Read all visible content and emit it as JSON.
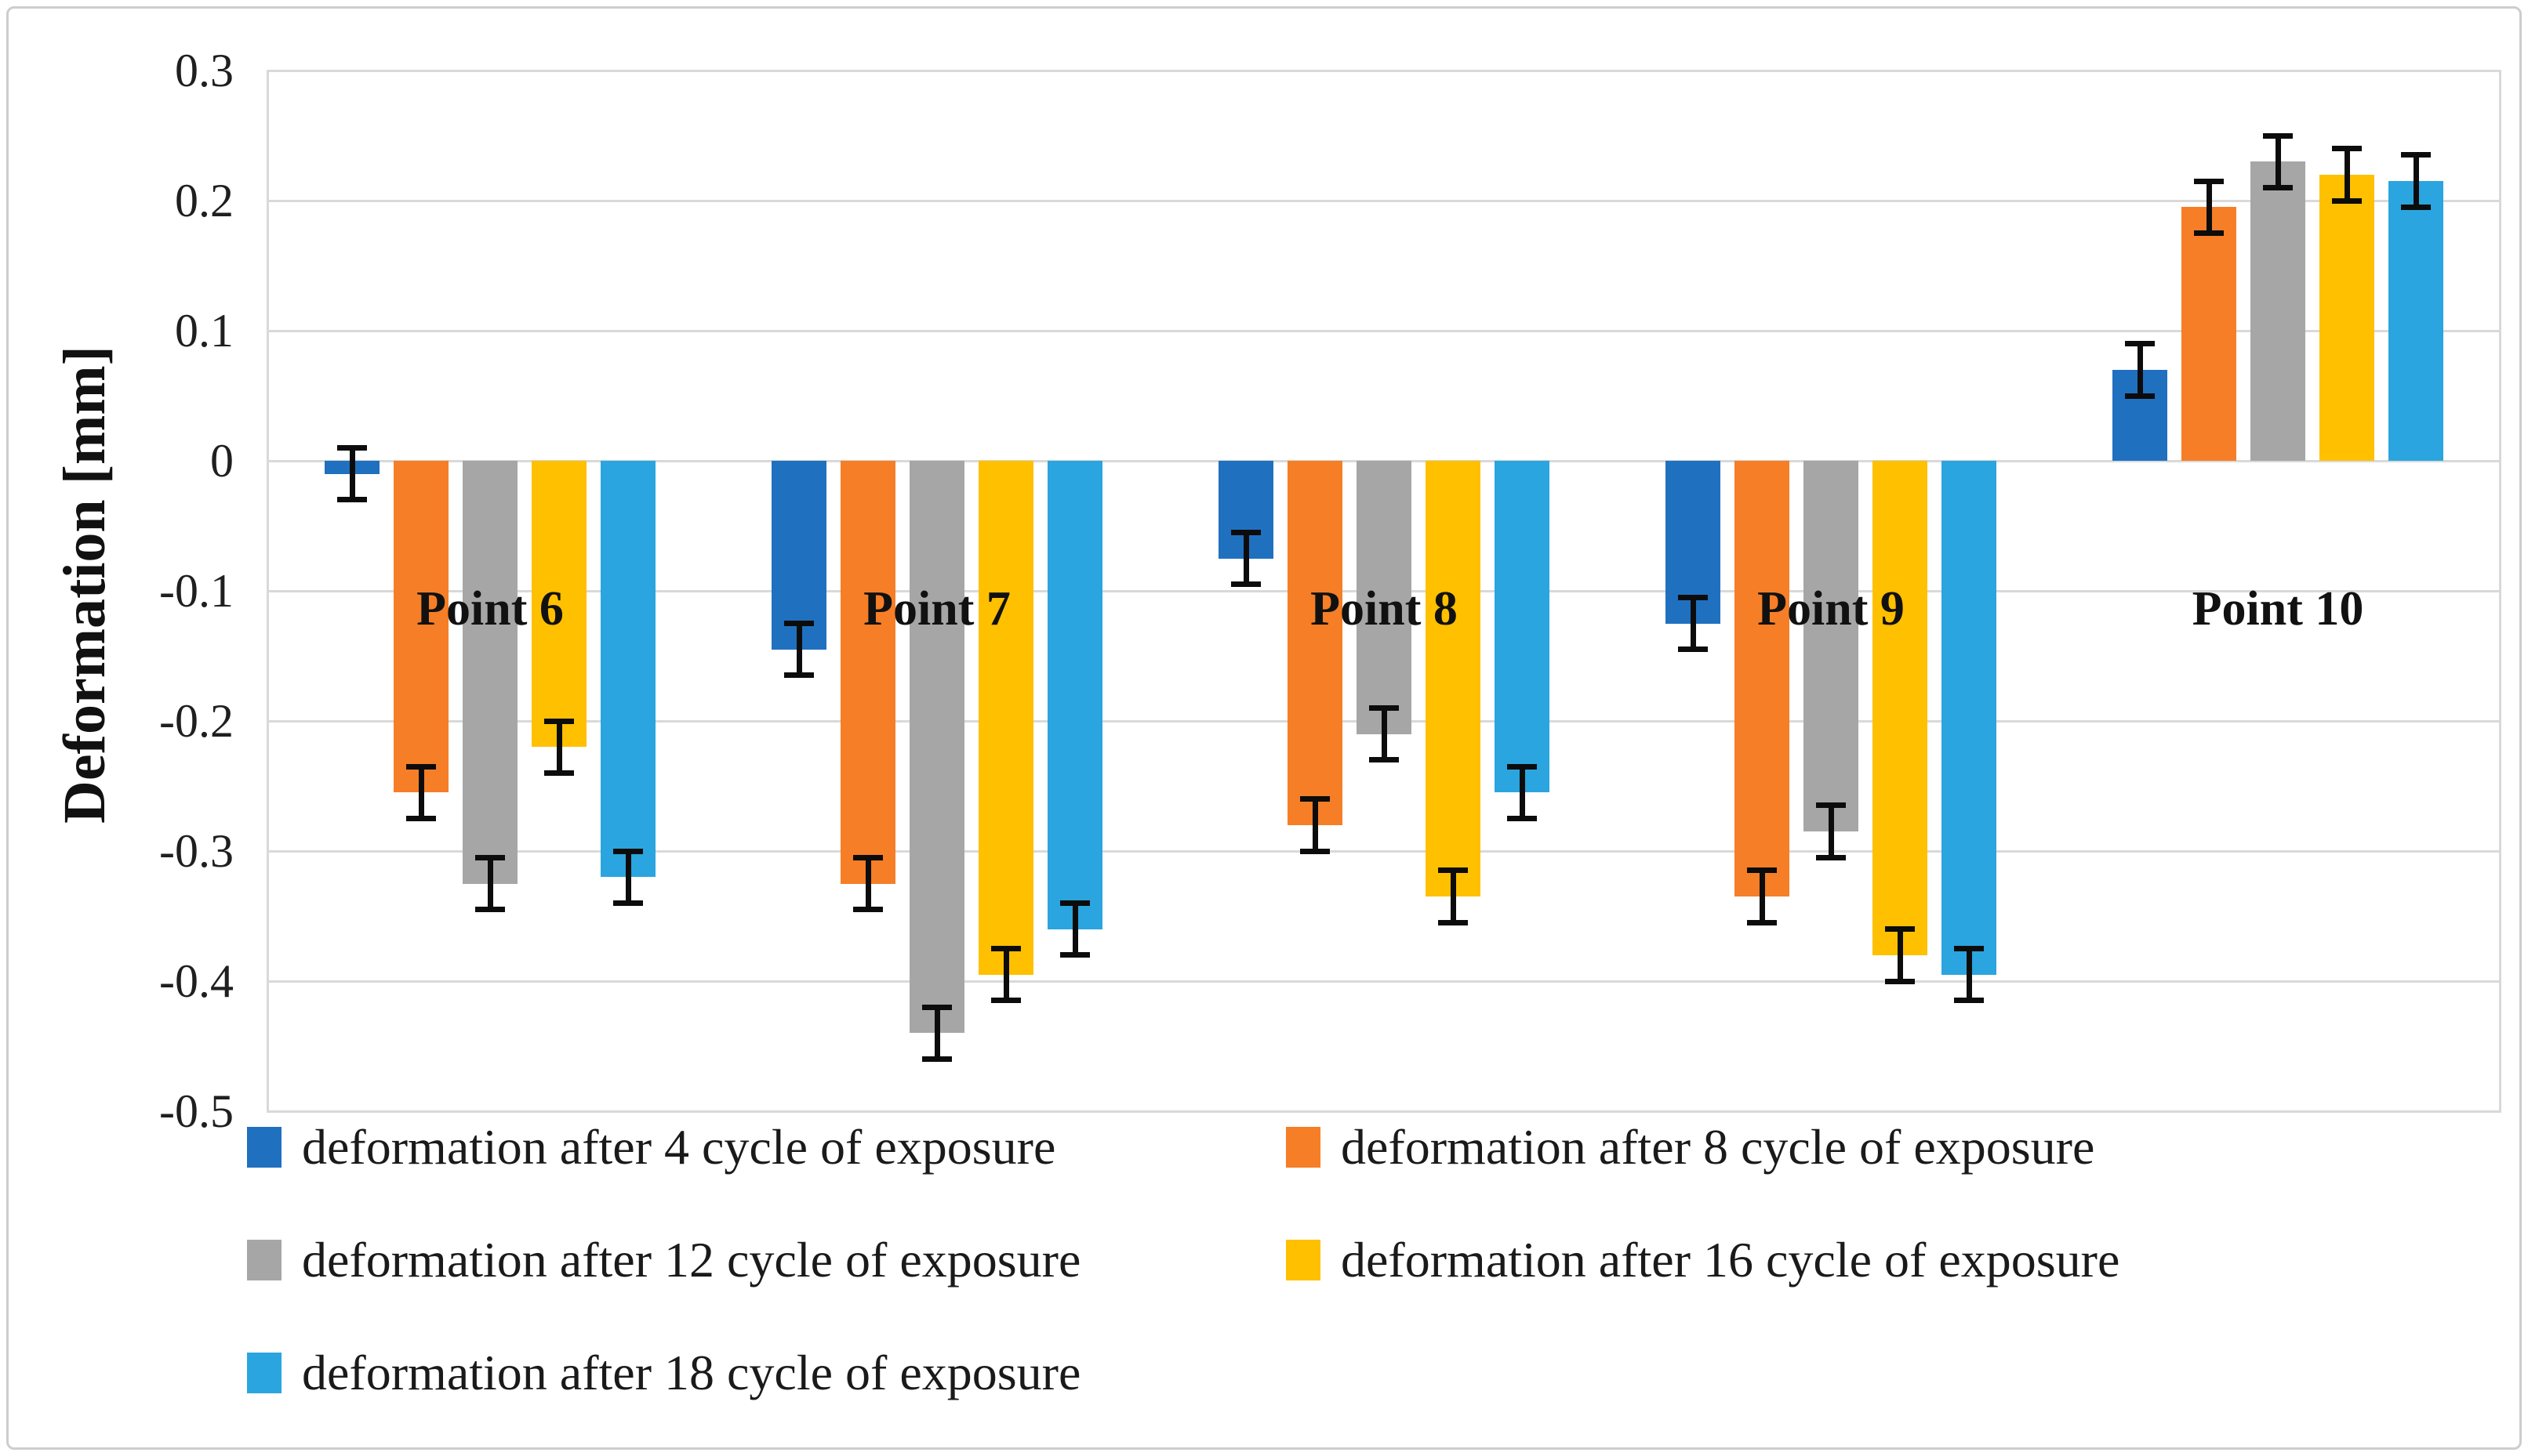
{
  "chart_data": {
    "type": "bar",
    "title": "",
    "xlabel": "",
    "ylabel": "Deformation [mm]",
    "categories": [
      "Point 6",
      "Point 7",
      "Point 8",
      "Point 9",
      "Point 10"
    ],
    "y_axis": {
      "min": -0.5,
      "max": 0.3,
      "tick_step": 0.1,
      "tick_labels": [
        "0.3",
        "0.2",
        "0.1",
        "0",
        "-0.1",
        "-0.2",
        "-0.3",
        "-0.4",
        "-0.5"
      ]
    },
    "grid": true,
    "legend_position": "bottom",
    "error_bar": 0.02,
    "series": [
      {
        "name": "deformation after 4 cycle of exposure",
        "color": "#2070C0",
        "values": [
          -0.01,
          -0.145,
          -0.075,
          -0.125,
          0.07
        ]
      },
      {
        "name": "deformation after 8 cycle of exposure",
        "color": "#F57E27",
        "values": [
          -0.255,
          -0.325,
          -0.28,
          -0.335,
          0.195
        ]
      },
      {
        "name": "deformation after 12 cycle of exposure",
        "color": "#A6A6A6",
        "values": [
          -0.325,
          -0.44,
          -0.21,
          -0.285,
          0.23
        ]
      },
      {
        "name": "deformation after 16 cycle of exposure",
        "color": "#FFC000",
        "values": [
          -0.22,
          -0.395,
          -0.335,
          -0.38,
          0.22
        ]
      },
      {
        "name": "deformation after 18 cycle of exposure",
        "color": "#2AA5DF",
        "values": [
          -0.32,
          -0.36,
          -0.255,
          -0.395,
          0.215
        ]
      }
    ],
    "legend_rows": [
      [
        0,
        1
      ],
      [
        2,
        3
      ],
      [
        4
      ]
    ],
    "colors": {
      "gridline": "#D9D9D9",
      "error_bar": "#0C0C0C",
      "text": "#1A1A1A",
      "frame_border": "#CFCDCB",
      "background": "#FFFFFF"
    }
  }
}
